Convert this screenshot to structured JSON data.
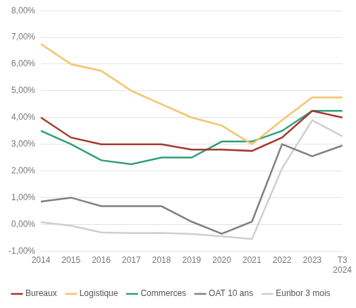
{
  "chart_data": {
    "type": "line",
    "categories": [
      "2014",
      "2015",
      "2016",
      "2017",
      "2018",
      "2019",
      "2020",
      "2021",
      "2022",
      "2023",
      "T3 2024"
    ],
    "series": [
      {
        "name": "Bureaux",
        "color": "#a33a2e",
        "values": [
          4.0,
          3.25,
          3.0,
          3.0,
          3.0,
          2.8,
          2.8,
          2.75,
          3.25,
          4.25,
          4.0
        ]
      },
      {
        "name": "Logistique",
        "color": "#f5c46e",
        "values": [
          6.75,
          6.0,
          5.75,
          5.0,
          4.5,
          4.0,
          3.7,
          3.0,
          3.9,
          4.75,
          4.75
        ]
      },
      {
        "name": "Commerces",
        "color": "#2f9e7b",
        "values": [
          3.5,
          3.0,
          2.4,
          2.25,
          2.5,
          2.5,
          3.1,
          3.1,
          3.5,
          4.25,
          4.25
        ]
      },
      {
        "name": "OAT 10 ans",
        "color": "#808080",
        "values": [
          0.85,
          1.0,
          0.68,
          0.68,
          0.68,
          0.1,
          -0.35,
          0.1,
          3.0,
          2.55,
          2.95
        ]
      },
      {
        "name": "Euribor 3 mois",
        "color": "#cfcfcf",
        "values": [
          0.08,
          -0.05,
          -0.3,
          -0.33,
          -0.32,
          -0.36,
          -0.45,
          -0.55,
          2.1,
          3.9,
          3.3
        ]
      }
    ],
    "ylim": [
      -1,
      8
    ],
    "yticks": [
      {
        "value": -1,
        "label": "-1,00%"
      },
      {
        "value": 0,
        "label": "0,00%"
      },
      {
        "value": 1,
        "label": "1,00%"
      },
      {
        "value": 2,
        "label": "2,00%"
      },
      {
        "value": 3,
        "label": "3,00%"
      },
      {
        "value": 4,
        "label": "4,00%"
      },
      {
        "value": 5,
        "label": "5,00%"
      },
      {
        "value": 6,
        "label": "6,00%"
      },
      {
        "value": 7,
        "label": "7,00%"
      },
      {
        "value": 8,
        "label": "8,00%"
      }
    ],
    "grid": true,
    "legend": "bottom",
    "marker": "none"
  }
}
